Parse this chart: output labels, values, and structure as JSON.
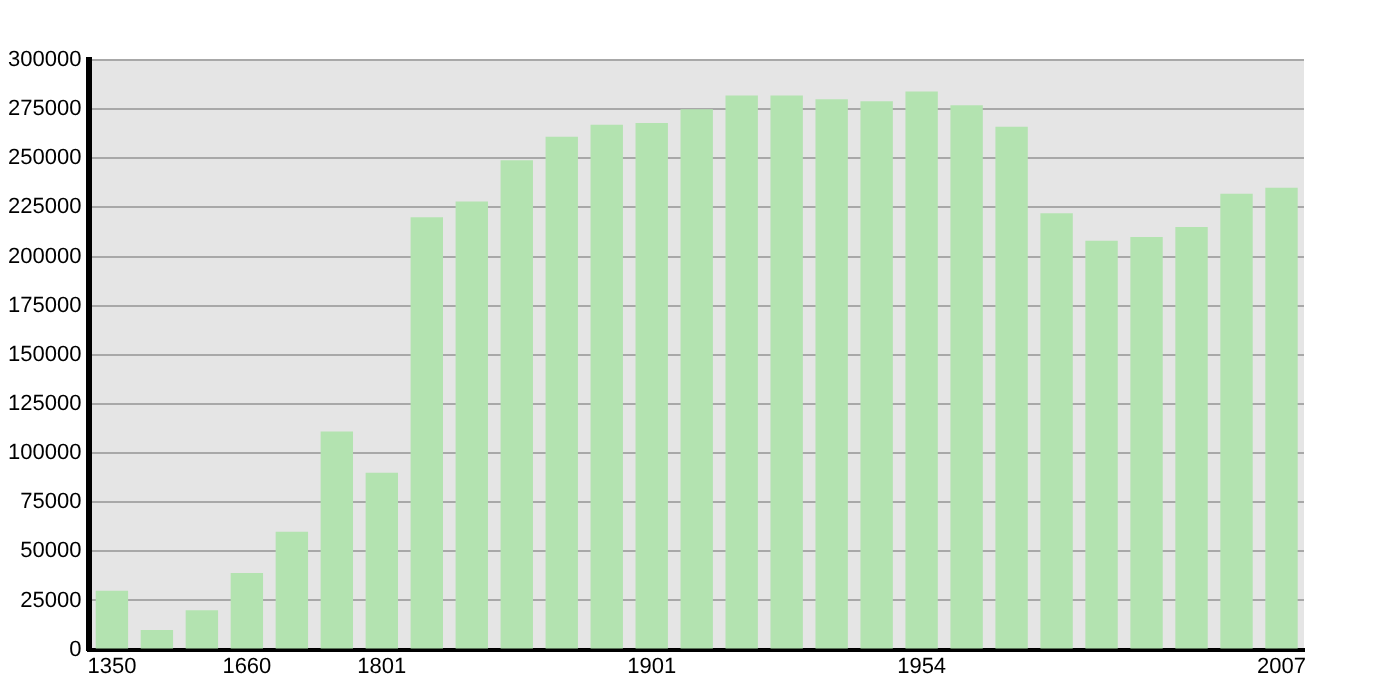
{
  "chart_data": {
    "type": "bar",
    "categories": [
      "1350",
      null,
      null,
      "1660",
      null,
      null,
      "1801",
      null,
      null,
      null,
      null,
      null,
      "1901",
      null,
      null,
      null,
      null,
      null,
      "1954",
      null,
      null,
      null,
      null,
      null,
      null,
      null,
      "2007"
    ],
    "values": [
      30000,
      10000,
      20000,
      39000,
      60000,
      111000,
      90000,
      220000,
      228000,
      249000,
      261000,
      267000,
      268000,
      275000,
      282000,
      282000,
      280000,
      279000,
      284000,
      277000,
      266000,
      222000,
      208000,
      210000,
      215000,
      232000,
      235000
    ],
    "color": "#b3e3b0",
    "ylim": [
      0,
      300000
    ],
    "yticks": [
      0,
      25000,
      50000,
      75000,
      100000,
      125000,
      150000,
      175000,
      200000,
      225000,
      250000,
      275000,
      300000
    ],
    "grid": "y"
  }
}
